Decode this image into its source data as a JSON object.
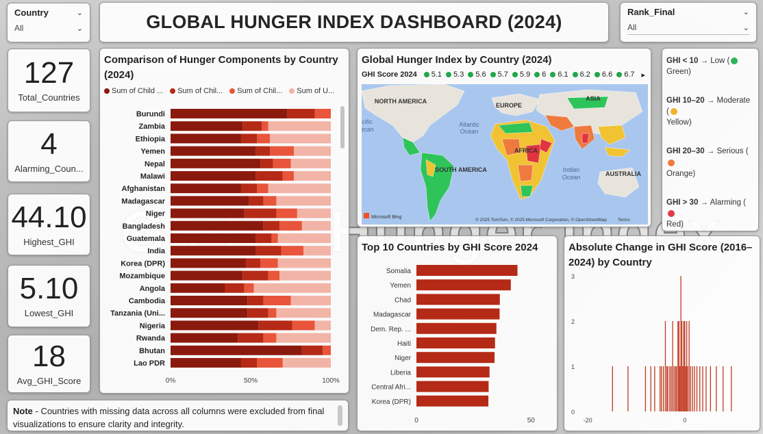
{
  "title": "GLOBAL HUNGER INDEX DASHBOARD (2024)",
  "watermark_text": "Global Hunger Index",
  "slicers": {
    "country": {
      "label": "Country",
      "value": "All"
    },
    "rank": {
      "label": "Rank_Final",
      "value": "All"
    }
  },
  "kpis": [
    {
      "value": "127",
      "label": "Total_Countries"
    },
    {
      "value": "4",
      "label": "Alarming_Coun..."
    },
    {
      "value": "44.10",
      "label": "Highest_GHI"
    },
    {
      "value": "5.10",
      "label": "Lowest_GHI"
    },
    {
      "value": "18",
      "label": "Avg_GHI_Score"
    }
  ],
  "note": {
    "bold": "Note",
    "text": " - Countries with missing data across all columns were excluded from final visualizations to ensure clarity and integrity."
  },
  "ghi_legend": [
    {
      "range": "GHI < 10",
      "arrow": " → ",
      "level": "Low",
      "color_name": "Green",
      "color": "#2db35a"
    },
    {
      "range": "GHI 10–20",
      "arrow": " → ",
      "level": "Moderate",
      "color_name": "Yellow",
      "color": "#f2b42a"
    },
    {
      "range": "GHI 20–30",
      "arrow": " → ",
      "level": "Serious",
      "color_name": "Orange",
      "color": "#f27a3a"
    },
    {
      "range": "GHI > 30",
      "arrow": " → ",
      "level": "Alarming",
      "color_name": "Red",
      "color": "#e23b4a"
    }
  ],
  "map": {
    "title": "Global Hunger Index by Country (2024)",
    "legend_title": "GHI Score 2024",
    "legend_items": [
      "5.1",
      "5.3",
      "5.6",
      "5.7",
      "5.9",
      "6",
      "6.1",
      "6.2",
      "6.6",
      "6.7"
    ],
    "labels": {
      "north_america": "NORTH AMERICA",
      "south_america": "SOUTH AMERICA",
      "europe": "EUROPE",
      "asia": "ASIA",
      "africa": "AFRICA",
      "australia": "AUSTRALIA",
      "atlantic": "Atlantic\nOcean",
      "indian": "Indian\nOcean",
      "pacific": "cific\necan"
    },
    "bing": "Microsoft Bing",
    "attribution": "© 2025 TomTom, © 2025 Microsoft Corporation, © OpenStreetMap",
    "terms": "Terms",
    "colors": {
      "water": "#a9c7ee",
      "land": "#e8e4dc",
      "green": "#2ec45a",
      "yellow": "#f1c232",
      "orange": "#ee7a3d",
      "red": "#e0343f"
    }
  },
  "chart_data": [
    {
      "type": "bar",
      "orientation": "horizontal-stacked-100",
      "title": "Comparison of Hunger Components by Country (2024)",
      "legend": [
        "Sum of Child ...",
        "Sum of Chil...",
        "Sum of Chil...",
        "Sum of U..."
      ],
      "colors": [
        "#8b1a0e",
        "#b52a16",
        "#e8553a",
        "#f2b4a6"
      ],
      "categories": [
        "Burundi",
        "Zambia",
        "Ethiopia",
        "Yemen",
        "Nepal",
        "Malawi",
        "Afghanistan",
        "Madagascar",
        "Niger",
        "Bangladesh",
        "Guatemala",
        "India",
        "Korea (DPR)",
        "Mozambique",
        "Angola",
        "Cambodia",
        "Tanzania (Uni...",
        "Nigeria",
        "Rwanda",
        "Bhutan",
        "Lao PDR"
      ],
      "series": [
        {
          "name": "Sum of Child ...",
          "values": [
            73,
            45,
            44,
            53,
            56,
            53,
            44,
            49,
            46,
            58,
            53,
            53,
            47,
            45,
            34,
            48,
            48,
            55,
            42,
            82,
            44
          ]
        },
        {
          "name": "Sum of Chil...",
          "values": [
            17,
            12,
            10,
            9,
            8,
            17,
            10,
            9,
            20,
            10,
            10,
            16,
            9,
            16,
            12,
            10,
            13,
            21,
            16,
            13,
            10
          ]
        },
        {
          "name": "Sum of Chil...",
          "values": [
            10,
            4,
            8,
            15,
            11,
            7,
            7,
            8,
            13,
            14,
            4,
            14,
            11,
            7,
            6,
            17,
            5,
            14,
            8,
            5,
            16
          ]
        },
        {
          "name": "Sum of U...",
          "values": [
            0,
            39,
            38,
            23,
            25,
            23,
            39,
            34,
            21,
            18,
            33,
            17,
            33,
            32,
            48,
            25,
            34,
            10,
            34,
            0,
            30
          ]
        }
      ],
      "xlim": [
        0,
        100
      ],
      "xticks": [
        "0%",
        "50%",
        "100%"
      ]
    },
    {
      "type": "bar",
      "orientation": "horizontal",
      "title": "Top 10 Countries by GHI Score 2024",
      "categories": [
        "Somalia",
        "Yemen",
        "Chad",
        "Madagascar",
        "Dem. Rep. ...",
        "Haiti",
        "Niger",
        "Liberia",
        "Central Afri...",
        "Korea (DPR)"
      ],
      "values": [
        44.1,
        41.2,
        36.4,
        36.3,
        34.9,
        34.3,
        34.1,
        31.9,
        31.5,
        31.4
      ],
      "color": "#b52a16",
      "xlim": [
        0,
        55
      ],
      "xticks": [
        "0",
        "50"
      ]
    },
    {
      "type": "bar",
      "orientation": "vertical-histogram",
      "title": "Absolute Change in GHI Score (2016–2024) by Country",
      "color": "#c0381e",
      "x": [
        -15,
        -11.8,
        -8.2,
        -7.1,
        -6.3,
        -5.2,
        -4.9,
        -4.5,
        -4.1,
        -3.8,
        -3.6,
        -3.2,
        -2.9,
        -2.6,
        -2.3,
        -2.0,
        -1.8,
        -1.5,
        -1.3,
        -1.1,
        -0.9,
        -0.7,
        -0.5,
        -0.3,
        -0.1,
        0.1,
        0.3,
        0.5,
        0.8,
        1.1,
        1.5,
        1.9,
        2.4,
        3.0,
        3.6,
        4.3,
        5.2,
        6.4,
        7.8,
        9.5
      ],
      "values": [
        1,
        1,
        1,
        1,
        1,
        1,
        1,
        1,
        2,
        1,
        1,
        1,
        1,
        2,
        1,
        1,
        1,
        2,
        2,
        1,
        3,
        2,
        1,
        2,
        2,
        1,
        2,
        1,
        2,
        1,
        1,
        1,
        1,
        1,
        1,
        1,
        1,
        1,
        1,
        1
      ],
      "xlim": [
        -22,
        14
      ],
      "ylim": [
        0,
        3
      ],
      "xticks": [
        "-20",
        "0"
      ],
      "yticks": [
        "0",
        "1",
        "2",
        "3"
      ]
    }
  ]
}
